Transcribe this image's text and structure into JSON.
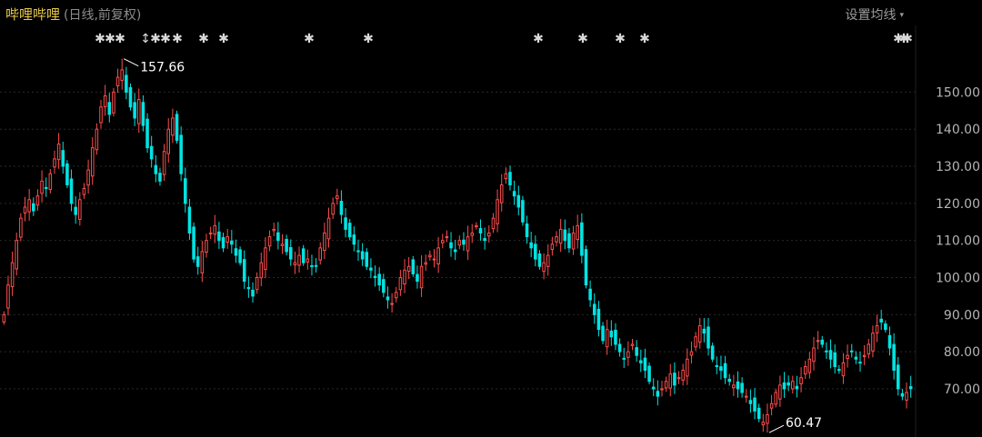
{
  "header": {
    "stock_name": "哔哩哔哩",
    "subtitle": "(日线,前复权)",
    "ma_button": "设置均线",
    "ma_button_arrow": "▾"
  },
  "colors": {
    "up": "#ff4d4d",
    "down": "#00e4e4",
    "grid": "#2a2a2a",
    "background": "#000000"
  },
  "chart_data": {
    "type": "candlestick",
    "y_axis": {
      "ticks": [
        70,
        80,
        90,
        100,
        110,
        120,
        130,
        140,
        150
      ],
      "tick_labels": [
        "70.00",
        "80.00",
        "90.00",
        "100.00",
        "110.00",
        "120.00",
        "130.00",
        "140.00",
        "150.00"
      ],
      "ylim": [
        57,
        167
      ]
    },
    "annotations": [
      {
        "label": "157.66",
        "value": 157.66
      },
      {
        "label": "60.47",
        "value": 60.47
      }
    ],
    "event_markers": [
      "✱",
      "✱",
      "✱",
      "↕",
      "✱",
      "✱",
      "✱",
      "✱",
      "✱",
      "✱",
      "✱",
      "✱",
      "✱",
      "✱",
      "✱",
      "✱",
      "✱",
      "✱"
    ],
    "close": [
      90,
      98,
      104,
      110,
      116,
      119,
      121,
      118,
      122,
      126,
      124,
      128,
      132,
      136,
      130,
      125,
      120,
      117,
      121,
      124,
      129,
      135,
      140,
      146,
      149,
      144,
      150,
      154,
      156,
      150,
      146,
      143,
      148,
      141,
      135,
      132,
      128,
      126,
      134,
      140,
      143,
      137,
      128,
      120,
      112,
      105,
      103,
      107,
      110,
      112,
      114,
      110,
      108,
      111,
      109,
      106,
      104,
      99,
      97,
      95,
      100,
      104,
      108,
      111,
      113,
      110,
      109,
      107,
      105,
      104,
      106,
      104,
      105,
      103,
      103,
      108,
      112,
      116,
      120,
      122,
      117,
      113,
      111,
      109,
      107,
      105,
      103,
      102,
      100,
      98,
      96,
      94,
      93,
      96,
      100,
      102,
      103,
      101,
      99,
      103,
      104,
      106,
      105,
      108,
      110,
      111,
      108,
      107,
      110,
      109,
      111,
      112,
      114,
      112,
      110,
      112,
      116,
      121,
      125,
      128,
      125,
      122,
      119,
      115,
      111,
      108,
      105,
      103,
      104,
      106,
      109,
      111,
      113,
      110,
      108,
      112,
      114,
      106,
      98,
      94,
      90,
      86,
      83,
      86,
      84,
      82,
      80,
      78,
      80,
      82,
      79,
      77,
      75,
      72,
      70,
      68,
      70,
      72,
      74,
      71,
      73,
      75,
      78,
      80,
      84,
      87,
      85,
      81,
      78,
      76,
      75,
      73,
      72,
      71,
      70,
      69,
      68,
      66,
      64,
      62,
      61,
      63,
      66,
      69,
      71,
      70,
      71,
      72,
      70,
      73,
      76,
      78,
      81,
      83,
      82,
      80,
      78,
      76,
      75,
      77,
      79,
      80,
      78,
      77,
      79,
      82,
      85,
      87,
      88,
      86,
      81,
      75,
      70,
      68,
      69,
      70
    ]
  }
}
